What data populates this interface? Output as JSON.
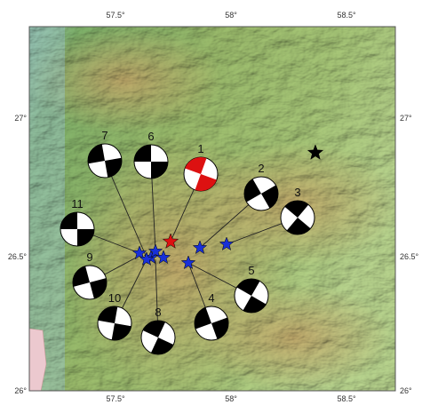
{
  "map": {
    "top_ticks": [
      "57.5°",
      "58°",
      "58.5°"
    ],
    "bottom_ticks": [
      "57.5°",
      "58°",
      "58.5°"
    ],
    "left_ticks": [
      "27°",
      "26.5°",
      "26°"
    ],
    "right_ticks": [
      "27°",
      "26.5°",
      "26°"
    ],
    "mechanisms": [
      {
        "label": "1"
      },
      {
        "label": "2"
      },
      {
        "label": "3"
      },
      {
        "label": "4"
      },
      {
        "label": "5"
      },
      {
        "label": "6"
      },
      {
        "label": "7"
      },
      {
        "label": "8"
      },
      {
        "label": "9"
      },
      {
        "label": "10"
      },
      {
        "label": "11"
      }
    ]
  }
}
